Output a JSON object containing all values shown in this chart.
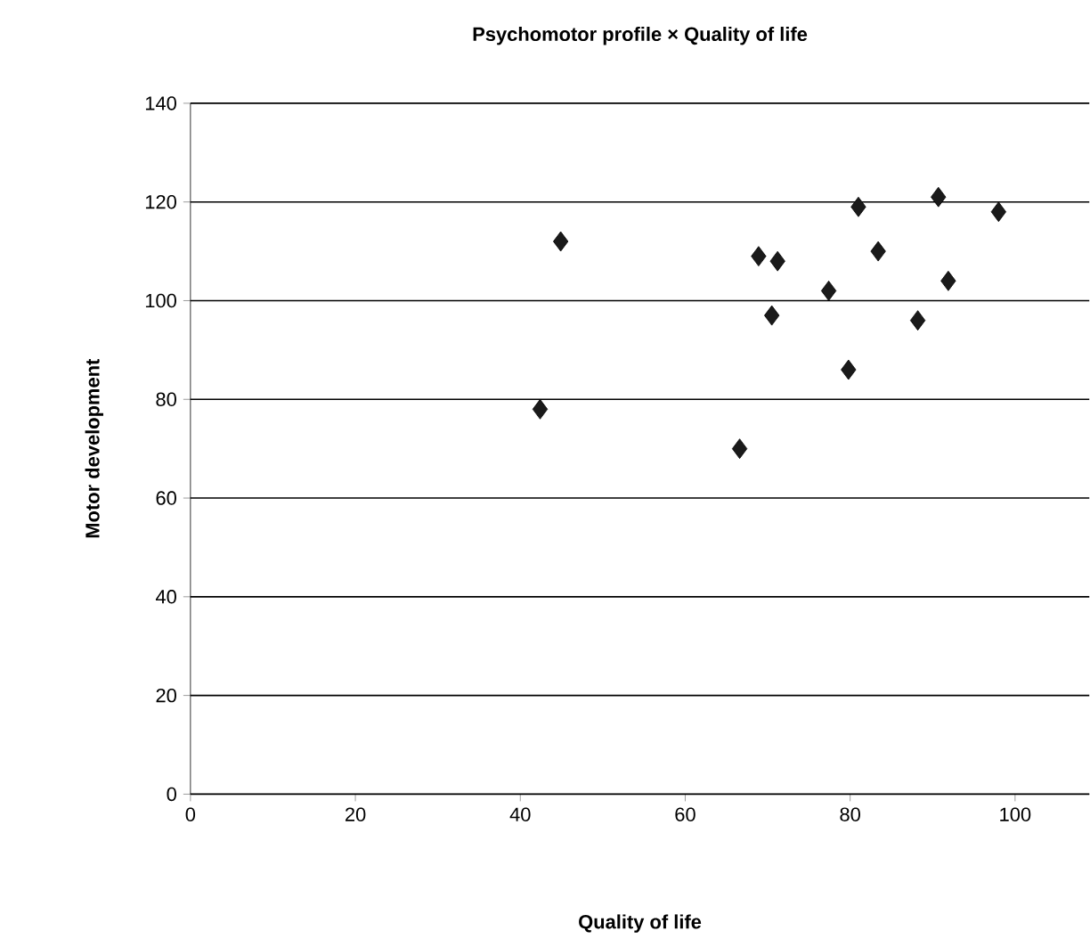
{
  "chart_data": {
    "type": "scatter",
    "title": "Psychomotor profile × Quality of life",
    "xlabel": "Quality of life",
    "ylabel": "Motor development",
    "xlim": [
      0,
      109
    ],
    "ylim": [
      0,
      140
    ],
    "xticks": [
      0,
      20,
      40,
      60,
      80,
      100
    ],
    "yticks": [
      0,
      20,
      40,
      60,
      80,
      100,
      120,
      140
    ],
    "grid": "y",
    "legend": false,
    "marker": "diamond",
    "series": [
      {
        "color": "#1a1a1a",
        "x": [
          44.9,
          42.4,
          66.6,
          68.9,
          71.2,
          70.5,
          77.4,
          79.8,
          81.0,
          83.4,
          88.2,
          90.7,
          91.9,
          98.0
        ],
        "values": [
          112,
          78,
          70,
          109,
          108,
          97,
          102,
          86,
          119,
          110,
          96,
          121,
          104,
          118
        ]
      }
    ]
  }
}
